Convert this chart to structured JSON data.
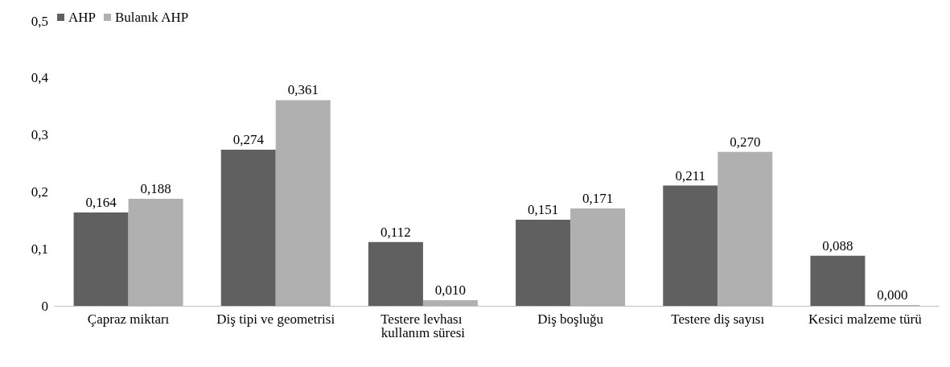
{
  "chart_data": {
    "type": "bar",
    "categories": [
      "Çapraz miktarı",
      "Diş tipi ve geometrisi",
      "Testere levhası kullanım süresi",
      "Diş boşluğu",
      "Testere diş sayısı",
      "Kesici malzeme türü"
    ],
    "series": [
      {
        "name": "AHP",
        "color": "#606060",
        "values": [
          0.164,
          0.274,
          0.112,
          0.151,
          0.211,
          0.088
        ],
        "value_labels": [
          "0,164",
          "0,274",
          "0,112",
          "0,151",
          "0,211",
          "0,088"
        ]
      },
      {
        "name": "Bulanık AHP",
        "color": "#b0b0b0",
        "values": [
          0.188,
          0.361,
          0.01,
          0.171,
          0.27,
          0
        ],
        "value_labels": [
          "0,188",
          "0,361",
          "0,010",
          "0,171",
          "0,270",
          "0,000"
        ]
      }
    ],
    "ylim": [
      0,
      0.5
    ],
    "yticks": [
      0,
      {
        "value": 0.1,
        "label": "0,1"
      },
      {
        "value": 0.2,
        "label": "0,2"
      },
      {
        "value": 0.3,
        "label": "0,3"
      },
      {
        "value": 0.4,
        "label": "0,4"
      },
      {
        "value": 0.5,
        "label": "0,5"
      }
    ],
    "grid": false,
    "legend": "top left"
  }
}
